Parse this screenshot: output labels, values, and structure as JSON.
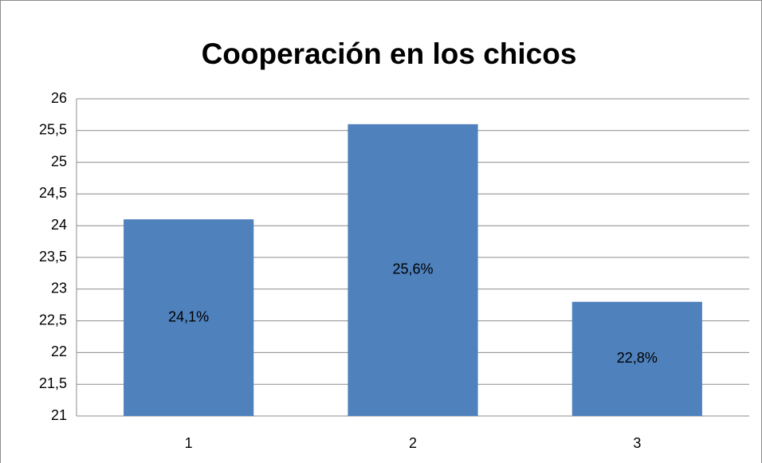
{
  "chart_data": {
    "type": "bar",
    "title": "Cooperación en los chicos",
    "categories": [
      "1",
      "2",
      "3"
    ],
    "values": [
      24.1,
      25.6,
      22.8
    ],
    "value_labels": [
      "24,1%",
      "25,6%",
      "22,8%"
    ],
    "color": "#4f81bd",
    "ylim": [
      21,
      26
    ],
    "yticks": [
      21,
      {
        "value": 21.5,
        "label": "21,5"
      },
      22,
      {
        "value": 22.5,
        "label": "22,5"
      },
      23,
      {
        "value": 23.5,
        "label": "23,5"
      },
      24,
      {
        "value": 24.5,
        "label": "24,5"
      },
      25,
      {
        "value": 25.5,
        "label": "25,5"
      },
      26
    ],
    "grid": true
  }
}
